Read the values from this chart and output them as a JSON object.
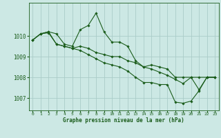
{
  "bg_color": "#cce8e4",
  "grid_color": "#aaccc8",
  "line_color": "#1a5c1a",
  "marker_color": "#1a5c1a",
  "xlabel": "Graphe pression niveau de la mer (hPa)",
  "xlabel_color": "#1a5c1a",
  "tick_color": "#1a5c1a",
  "ylim": [
    1006.4,
    1011.6
  ],
  "xlim": [
    -0.5,
    23.5
  ],
  "yticks": [
    1007,
    1008,
    1009,
    1010
  ],
  "xticks": [
    0,
    1,
    2,
    3,
    4,
    5,
    6,
    7,
    8,
    9,
    10,
    11,
    12,
    13,
    14,
    15,
    16,
    17,
    18,
    19,
    20,
    21,
    22,
    23
  ],
  "series": [
    {
      "x": [
        0,
        1,
        2,
        3,
        4,
        5,
        6,
        7,
        8,
        9,
        10,
        11,
        12,
        13,
        14,
        15,
        16,
        17,
        18,
        19,
        20,
        21,
        22,
        23
      ],
      "y": [
        1009.8,
        1010.1,
        1010.2,
        1010.1,
        1009.6,
        1009.5,
        1010.3,
        1010.5,
        1011.1,
        1010.2,
        1009.7,
        1009.7,
        1009.5,
        1008.8,
        1008.5,
        1008.6,
        1008.5,
        1008.4,
        1008.0,
        1008.0,
        1008.0,
        1008.0,
        1008.0,
        1008.0
      ]
    },
    {
      "x": [
        0,
        1,
        2,
        3,
        4,
        5,
        6,
        7,
        8,
        9,
        10,
        11,
        12,
        13,
        14,
        15,
        16,
        17,
        18,
        19,
        20,
        21,
        22,
        23
      ],
      "y": [
        1009.8,
        1010.1,
        1010.2,
        1009.6,
        1009.5,
        1009.4,
        1009.5,
        1009.4,
        1009.2,
        1009.1,
        1009.0,
        1009.0,
        1008.8,
        1008.7,
        1008.5,
        1008.4,
        1008.25,
        1008.1,
        1007.9,
        1007.7,
        1008.0,
        1007.4,
        1008.0,
        1008.0
      ]
    },
    {
      "x": [
        0,
        1,
        2,
        3,
        4,
        5,
        6,
        7,
        8,
        9,
        10,
        11,
        12,
        13,
        14,
        15,
        16,
        17,
        18,
        19,
        20,
        21,
        22,
        23
      ],
      "y": [
        1009.8,
        1010.1,
        1010.15,
        1009.6,
        1009.5,
        1009.4,
        1009.3,
        1009.1,
        1008.9,
        1008.7,
        1008.6,
        1008.5,
        1008.3,
        1008.0,
        1007.75,
        1007.75,
        1007.65,
        1007.65,
        1006.8,
        1006.75,
        1006.85,
        1007.35,
        1008.0,
        1008.0
      ]
    }
  ]
}
